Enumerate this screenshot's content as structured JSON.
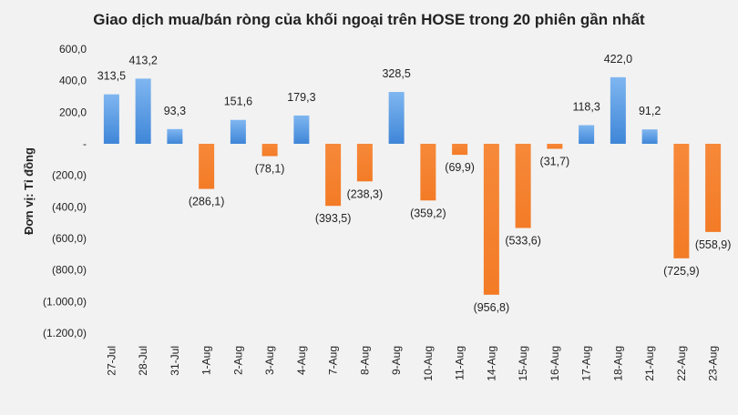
{
  "chart_data": {
    "type": "bar",
    "title": "Giao dịch mua/bán ròng của khối ngoại trên HOSE trong 20 phiên gần nhất",
    "ylabel": "Đơn vị: Tỉ đồng",
    "xlabel": "",
    "ylim": [
      -1200,
      600
    ],
    "yticks": [
      600,
      400,
      200,
      0,
      -200,
      -400,
      -600,
      -800,
      -1000,
      -1200
    ],
    "ytick_labels": [
      "600,0",
      "400,0",
      "200,0",
      "-",
      "(200,0)",
      "(400,0)",
      "(600,0)",
      "(800,0)",
      "(1.000,0)",
      "(1.200,0)"
    ],
    "categories": [
      "27-Jul",
      "28-Jul",
      "31-Jul",
      "1-Aug",
      "2-Aug",
      "3-Aug",
      "4-Aug",
      "7-Aug",
      "8-Aug",
      "9-Aug",
      "10-Aug",
      "11-Aug",
      "14-Aug",
      "15-Aug",
      "16-Aug",
      "17-Aug",
      "18-Aug",
      "21-Aug",
      "22-Aug",
      "23-Aug"
    ],
    "values": [
      313.5,
      413.2,
      93.3,
      -286.1,
      151.6,
      -78.1,
      179.3,
      -393.5,
      -238.3,
      328.5,
      -359.2,
      -69.9,
      -956.8,
      -533.6,
      -31.7,
      118.3,
      422.0,
      91.2,
      -725.9,
      -558.9
    ],
    "value_labels": [
      "313,5",
      "413,2",
      "93,3",
      "(286,1)",
      "151,6",
      "(78,1)",
      "179,3",
      "(393,5)",
      "(238,3)",
      "328,5",
      "(359,2)",
      "(69,9)",
      "(956,8)",
      "(533,6)",
      "(31,7)",
      "118,3",
      "422,0",
      "91,2",
      "(725,9)",
      "(558,9)"
    ],
    "positive_color": "#4a90e2",
    "negative_color": "#f58a33",
    "grid": false,
    "legend": "none"
  }
}
